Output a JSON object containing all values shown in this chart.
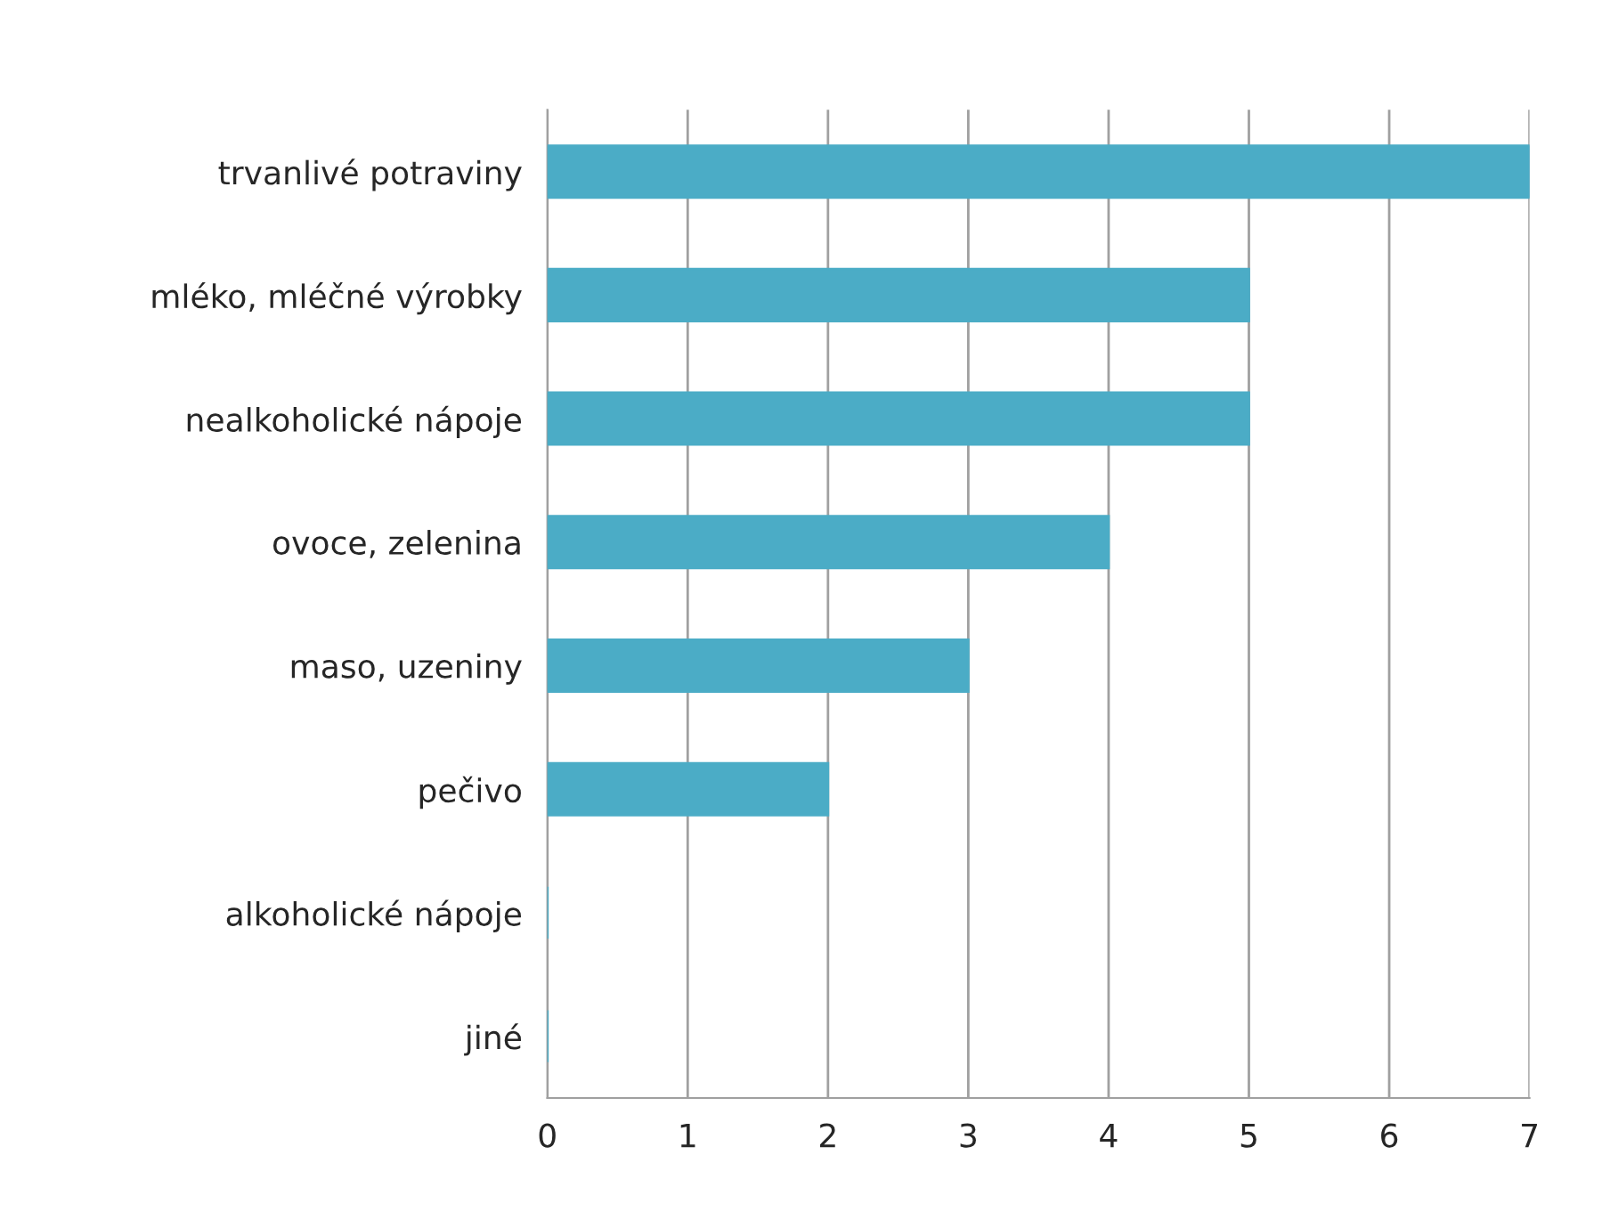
{
  "chart_data": {
    "type": "bar",
    "orientation": "horizontal",
    "categories": [
      "trvanlivé potraviny",
      "mléko, mléčné výrobky",
      "nealkoholické nápoje",
      "ovoce, zelenina",
      "maso, uzeniny",
      "pečivo",
      "alkoholické nápoje",
      "jiné"
    ],
    "values": [
      7,
      5,
      5,
      4,
      3,
      2,
      0,
      0
    ],
    "color": "#4bacc6",
    "xlim": [
      0,
      7
    ],
    "xticks": [
      0,
      1,
      2,
      3,
      4,
      5,
      6,
      7
    ],
    "grid": "x",
    "legend": false
  }
}
